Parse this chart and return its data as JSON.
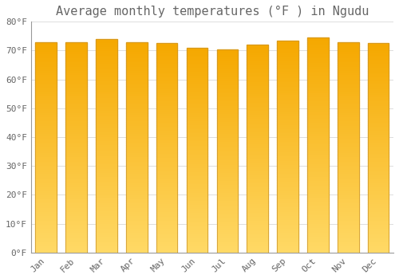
{
  "title": "Average monthly temperatures (°F ) in Ngudu",
  "months": [
    "Jan",
    "Feb",
    "Mar",
    "Apr",
    "May",
    "Jun",
    "Jul",
    "Aug",
    "Sep",
    "Oct",
    "Nov",
    "Dec"
  ],
  "values": [
    73,
    73,
    74,
    73,
    72.5,
    71,
    70.5,
    72,
    73.5,
    74.5,
    73,
    72.5
  ],
  "bar_color_dark": "#F5A800",
  "bar_color_light": "#FFD966",
  "bar_edge_color": "#C8922A",
  "background_color": "#FFFFFF",
  "plot_bg_color": "#FFFFFF",
  "grid_color": "#DDDDDD",
  "text_color": "#666666",
  "ylim": [
    0,
    80
  ],
  "yticks": [
    0,
    10,
    20,
    30,
    40,
    50,
    60,
    70,
    80
  ],
  "ytick_labels": [
    "0°F",
    "10°F",
    "20°F",
    "30°F",
    "40°F",
    "50°F",
    "60°F",
    "70°F",
    "80°F"
  ],
  "title_fontsize": 11,
  "tick_fontsize": 8,
  "font_family": "monospace",
  "bar_width": 0.7,
  "gradient_steps": 100
}
